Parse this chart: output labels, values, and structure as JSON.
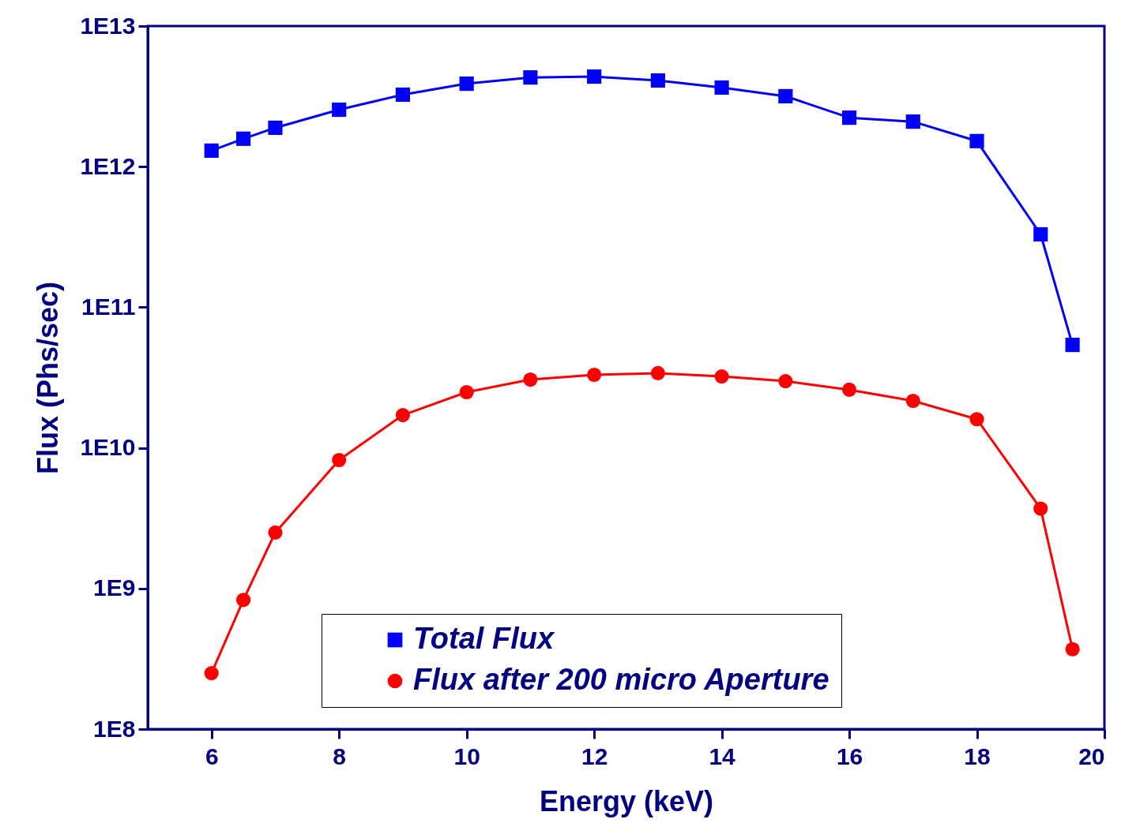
{
  "chart_data": {
    "type": "line",
    "xlabel": "Energy (keV)",
    "ylabel": "Flux (Phs/sec)",
    "x": [
      6,
      6.5,
      7,
      8,
      9,
      10,
      11,
      12,
      13,
      14,
      15,
      16,
      17,
      18,
      19,
      19.5
    ],
    "series": [
      {
        "name": "Total Flux",
        "color": "#0000ff",
        "marker": "square",
        "values": [
          1300000000000.0,
          1580000000000.0,
          1890000000000.0,
          2540000000000.0,
          3250000000000.0,
          3890000000000.0,
          4310000000000.0,
          4370000000000.0,
          4100000000000.0,
          3650000000000.0,
          3170000000000.0,
          2230000000000.0,
          2090000000000.0,
          1520000000000.0,
          330000000000.0,
          54000000000.0
        ]
      },
      {
        "name": "Flux after 200 micro Aperture",
        "color": "#ff0000",
        "marker": "circle",
        "values": [
          250000000.0,
          830000000.0,
          2500000000.0,
          8200000000.0,
          17100000000.0,
          24900000000.0,
          30600000000.0,
          33100000000.0,
          34000000000.0,
          32200000000.0,
          29800000000.0,
          25900000000.0,
          21600000000.0,
          16000000000.0,
          3700000000.0,
          370000000.0
        ]
      }
    ],
    "xlim": [
      5,
      20
    ],
    "xticks": [
      6,
      8,
      10,
      12,
      14,
      16,
      18,
      20
    ],
    "log": "y",
    "ylim": [
      100000000.0,
      10000000000000.0
    ],
    "yticks": [
      {
        "value": 100000000.0,
        "label": "1E8"
      },
      {
        "value": 1000000000.0,
        "label": "1E9"
      },
      {
        "value": 10000000000.0,
        "label": "1E10"
      },
      {
        "value": 100000000000.0,
        "label": "1E11"
      },
      {
        "value": 1000000000000.0,
        "label": "1E12"
      },
      {
        "value": 10000000000000.0,
        "label": "1E13"
      }
    ],
    "grid": false,
    "legend": "bottom",
    "line_style": "solid"
  }
}
